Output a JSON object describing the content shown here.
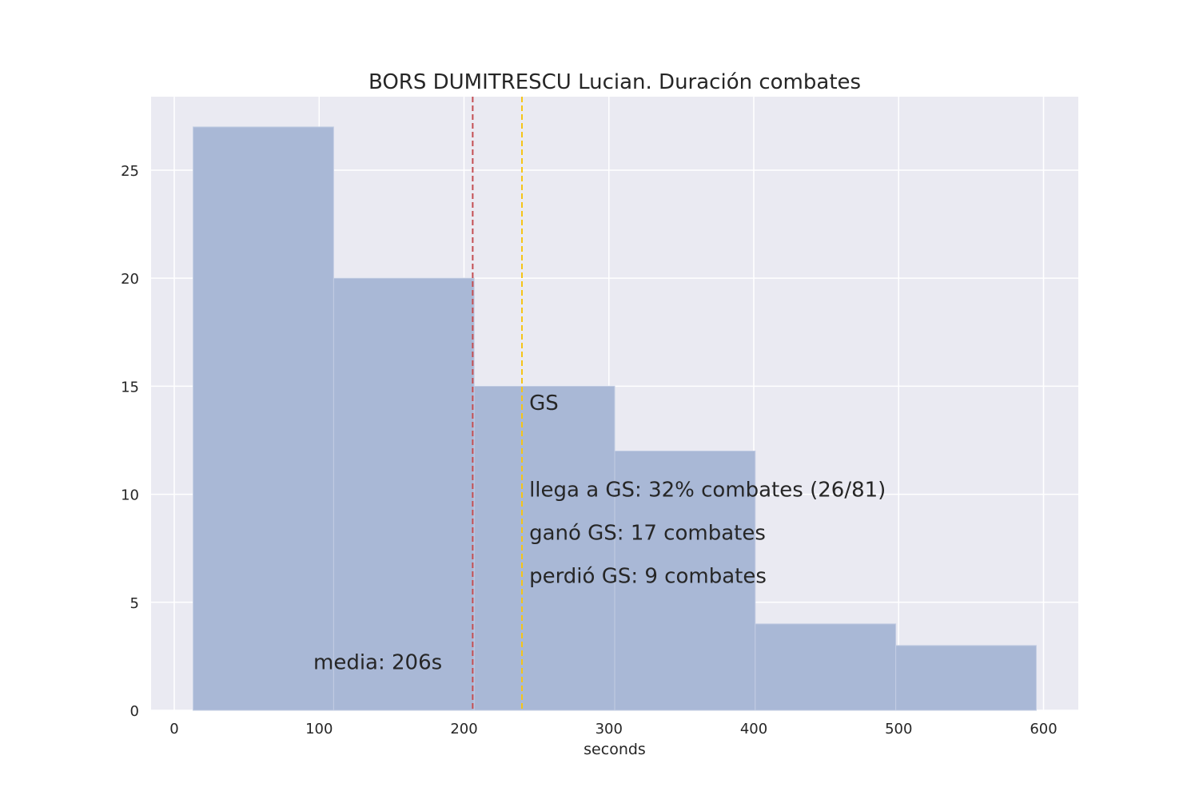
{
  "chart_data": {
    "type": "bar",
    "title": "BORS DUMITRESCU Lucian. Duración combates",
    "xlabel": "seconds",
    "ylabel": "",
    "xlim": [
      -16,
      624
    ],
    "ylim": [
      0,
      28.4
    ],
    "xticks": [
      0,
      100,
      200,
      300,
      400,
      500,
      600
    ],
    "yticks": [
      0,
      5,
      10,
      15,
      20,
      25
    ],
    "grid": true,
    "bins": [
      {
        "x0": 13,
        "x1": 110,
        "count": 27
      },
      {
        "x0": 110,
        "x1": 207,
        "count": 20
      },
      {
        "x0": 207,
        "x1": 304,
        "count": 15
      },
      {
        "x0": 304,
        "x1": 401,
        "count": 12
      },
      {
        "x0": 401,
        "x1": 498,
        "count": 4
      },
      {
        "x0": 498,
        "x1": 595,
        "count": 3
      }
    ],
    "vlines": [
      {
        "x": 206,
        "color": "#c44e52",
        "style": "dashed"
      },
      {
        "x": 240,
        "color": "#f5c518",
        "style": "dashed"
      }
    ],
    "annotations": {
      "gs": "GS",
      "llega": "llega a GS: 32% combates (26/81)",
      "gano": "ganó GS: 17 combates",
      "perdio": "perdió GS: 9 combates",
      "media": "media: 206s"
    },
    "colors": {
      "bar": "#a9b8d6",
      "background": "#eaeaf2",
      "grid": "#ffffff",
      "mean_line": "#c44e52",
      "gs_line": "#f5c518",
      "media_text": "#c44e52"
    }
  }
}
